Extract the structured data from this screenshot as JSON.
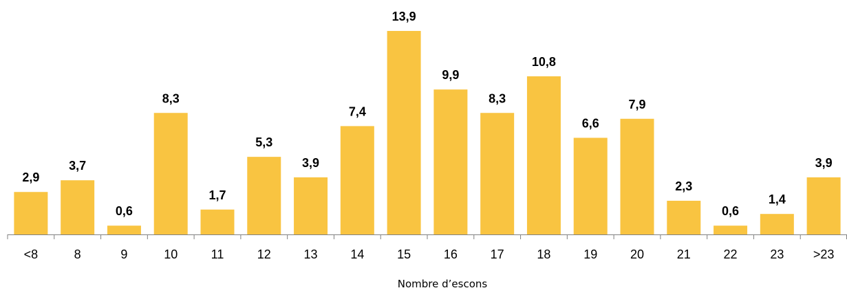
{
  "chart_data": {
    "type": "bar",
    "title": "",
    "xlabel": "Nombre d’escons",
    "ylabel": "",
    "categories": [
      "<8",
      "8",
      "9",
      "10",
      "11",
      "12",
      "13",
      "14",
      "15",
      "16",
      "17",
      "18",
      "19",
      "20",
      "21",
      "22",
      "23",
      ">23"
    ],
    "values": [
      2.9,
      3.7,
      0.6,
      8.3,
      1.7,
      5.3,
      3.9,
      7.4,
      13.9,
      9.9,
      8.3,
      10.8,
      6.6,
      7.9,
      2.3,
      0.6,
      1.4,
      3.9
    ],
    "value_labels": [
      "2,9",
      "3,7",
      "0,6",
      "8,3",
      "1,7",
      "5,3",
      "3,9",
      "7,4",
      "13,9",
      "9,9",
      "8,3",
      "10,8",
      "6,6",
      "7,9",
      "2,3",
      "0,6",
      "1,4",
      "3,9"
    ],
    "ylim": [
      0,
      13.9
    ],
    "grid": false,
    "legend": "none",
    "colors": {
      "bar": "#F9C441",
      "axis": "#808080",
      "text": "#000000"
    }
  }
}
